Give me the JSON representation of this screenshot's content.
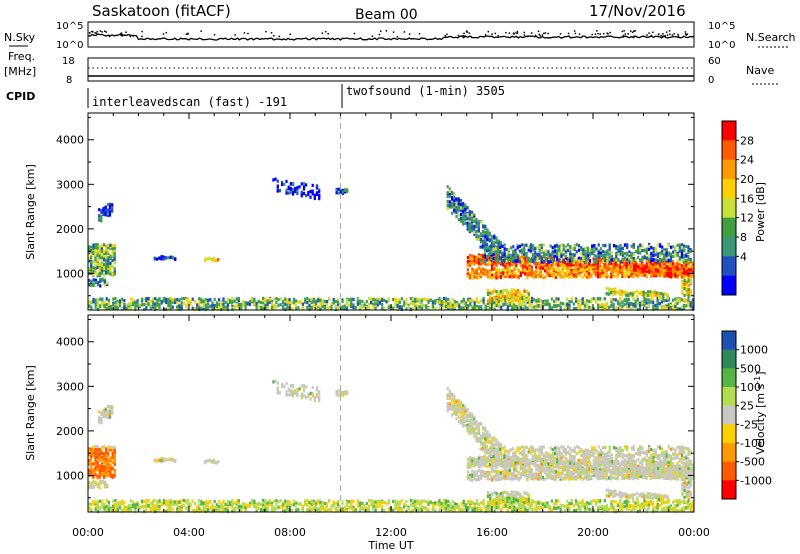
{
  "header": {
    "title": "Saskatoon (fitACF)",
    "beam": "Beam 00",
    "date": "17/Nov/2016"
  },
  "top_panels": {
    "nsky_label": "N.Sky",
    "nsky_ticks": [
      "10^5",
      "10^0"
    ],
    "nsearch_label": "N.Search",
    "nsearch_ticks": [
      "10^5",
      "10^0"
    ],
    "freq_label": "Freq.",
    "freq_unit": "[MHz]",
    "freq_ticks": [
      "18",
      "8"
    ],
    "nave_label": "Nave",
    "nave_ticks": [
      "60",
      "0"
    ],
    "cpid_label": "CPID",
    "cpid_segments": [
      {
        "label": "interleavedscan (fast) -191",
        "start_hour": 0
      },
      {
        "label": "twofsound (1-min) 3505",
        "start_hour": 10
      }
    ]
  },
  "chart_data": [
    {
      "type": "heatmap",
      "xlabel": "Time UT",
      "ylabel": "Slant Range [km]",
      "x_range_hours": [
        0,
        24
      ],
      "ylim": [
        180,
        4600
      ],
      "yticks": [
        1000,
        2000,
        3000,
        4000
      ],
      "xtick_labels": [
        "00:00",
        "04:00",
        "08:00",
        "12:00",
        "16:00",
        "20:00",
        "00:00"
      ],
      "xtick_hours": [
        0,
        4,
        8,
        12,
        16,
        20,
        24
      ],
      "dashed_marker_hour": 10,
      "colorbar": {
        "label": "Power [dB]",
        "tick_labels": [
          "28",
          "24",
          "20",
          "16",
          "12",
          "8",
          "4"
        ],
        "colors": [
          "#ff0000",
          "#ff5a00",
          "#ff9a00",
          "#ffd000",
          "#c8e038",
          "#40a040",
          "#3c9678",
          "#2050c0",
          "#0000ff"
        ]
      }
    },
    {
      "type": "heatmap",
      "xlabel": "Time UT",
      "ylabel": "Slant Range [km]",
      "x_range_hours": [
        0,
        24
      ],
      "ylim": [
        180,
        4600
      ],
      "yticks": [
        1000,
        2000,
        3000,
        4000
      ],
      "dashed_marker_hour": 10,
      "colorbar": {
        "label": "Velocity [m s^-1]",
        "tick_labels": [
          "1000",
          "500",
          "100",
          "25",
          "-25",
          "-100",
          "-500",
          "-1000"
        ],
        "colors": [
          "#1e50b4",
          "#2f8a5a",
          "#55b445",
          "#b4dc50",
          "#c8c8c0",
          "#ffd000",
          "#ff9a00",
          "#ff5a00",
          "#ff0000"
        ]
      }
    }
  ]
}
